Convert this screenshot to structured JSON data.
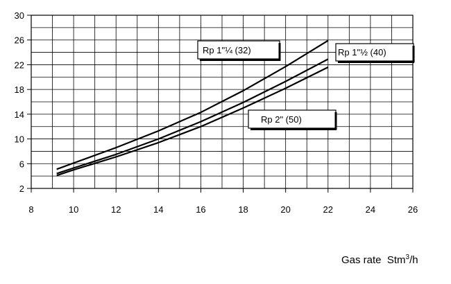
{
  "chart_data": {
    "type": "line",
    "title": "",
    "xlabel": "Gas rate  Stm³/h",
    "ylabel": "",
    "xlim": [
      8,
      26
    ],
    "ylim": [
      2,
      30
    ],
    "grid": true,
    "x_ticks": [
      8,
      10,
      12,
      14,
      16,
      18,
      20,
      22,
      24,
      26
    ],
    "y_ticks": [
      2,
      6,
      10,
      14,
      18,
      22,
      26,
      30
    ],
    "series": [
      {
        "name": "Rp 1\"¼ (32)",
        "x": [
          9.2,
          10,
          12,
          14,
          16,
          18,
          20,
          22
        ],
        "y": [
          5.1,
          6.1,
          8.6,
          11.3,
          14.3,
          17.8,
          21.7,
          25.9
        ]
      },
      {
        "name": "Rp 1\"½ (40)",
        "x": [
          9.2,
          10,
          12,
          14,
          16,
          18,
          20,
          22
        ],
        "y": [
          4.4,
          5.3,
          7.5,
          10.0,
          12.8,
          15.9,
          19.3,
          22.9
        ]
      },
      {
        "name": "Rp 2\" (50)",
        "x": [
          9.2,
          10,
          12,
          14,
          16,
          18,
          20,
          22
        ],
        "y": [
          4.1,
          5.0,
          7.1,
          9.4,
          12.0,
          15.0,
          18.2,
          21.6
        ]
      }
    ]
  }
}
